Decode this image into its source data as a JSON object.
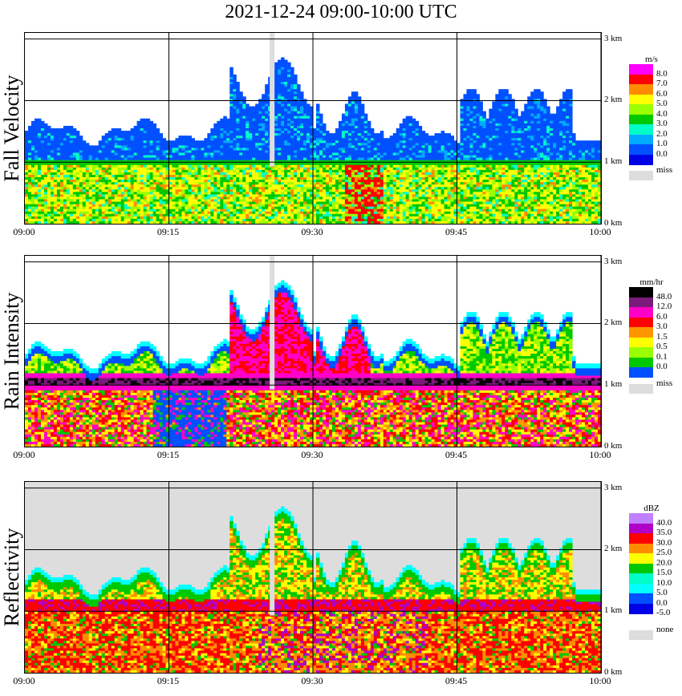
{
  "title": "2021-12-24   09:00-10:00 UTC",
  "chart_data": [
    {
      "type": "heatmap",
      "ylabel": "Fall Velocity",
      "unit": "m/s",
      "xticks": [
        "09:00",
        "09:15",
        "09:30",
        "09:45",
        "10:00"
      ],
      "yticks": [
        "0 km",
        "1 km",
        "2 km",
        "3 km"
      ],
      "ylim": [
        0,
        3.1
      ],
      "legend": [
        "8.0",
        "7.0",
        "6.0",
        "5.0",
        "4.0",
        "3.0",
        "2.0",
        "1.0",
        "0.0"
      ],
      "legend_extra": "miss",
      "colors": [
        "#ff00ff",
        "#ff0000",
        "#ff8c00",
        "#ffff00",
        "#9aff00",
        "#00c800",
        "#00ffc8",
        "#00aaff",
        "#0050ff",
        "#0000e6"
      ],
      "missing_color": "#dddddd",
      "background": "#ffffff"
    },
    {
      "type": "heatmap",
      "ylabel": "Rain Intensity",
      "unit": "mm/hr",
      "xticks": [
        "09:00",
        "09:15",
        "09:30",
        "09:45",
        "10:00"
      ],
      "yticks": [
        "0 km",
        "1 km",
        "2 km",
        "3 km"
      ],
      "ylim": [
        0,
        3.1
      ],
      "legend": [
        "48.0",
        "12.0",
        "6.0",
        "3.0",
        "1.5",
        "0.5",
        "0.1",
        "0.0"
      ],
      "legend_extra": "miss",
      "colors": [
        "#000000",
        "#7a1a7a",
        "#ff00c8",
        "#ff0000",
        "#ff9600",
        "#ffff00",
        "#9aff00",
        "#00c800",
        "#0050ff",
        "#0000e6",
        "#00ffff",
        "#c8ffff"
      ],
      "missing_color": "#dddddd",
      "background": "#ffffff"
    },
    {
      "type": "heatmap",
      "ylabel": "Reflectivity",
      "unit": "dBZ",
      "xticks": [
        "09:00",
        "09:15",
        "09:30",
        "09:45",
        "10:00"
      ],
      "yticks": [
        "0 km",
        "1 km",
        "2 km",
        "3 km"
      ],
      "ylim": [
        0,
        3.1
      ],
      "legend": [
        "40.0",
        "35.0",
        "30.0",
        "25.0",
        "20.0",
        "15.0",
        "10.0",
        "5.0",
        "0.0",
        "-5.0"
      ],
      "legend_extra": "none",
      "colors": [
        "#c080ff",
        "#b000c8",
        "#ff0000",
        "#ff8c00",
        "#ffff00",
        "#00c800",
        "#00ffc8",
        "#00ffff",
        "#0050ff",
        "#0000e6"
      ],
      "missing_color": "#dddddd",
      "background": "#dddddd"
    }
  ]
}
